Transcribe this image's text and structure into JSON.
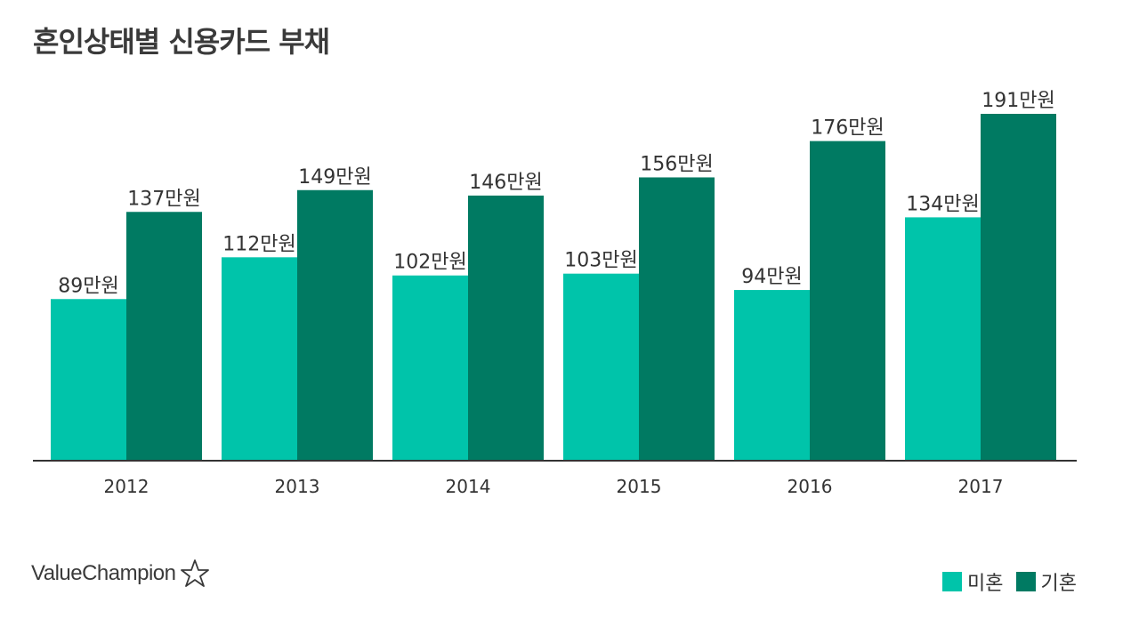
{
  "title": "혼인상태별 신용카드 부채",
  "logo": {
    "text": "ValueChampion",
    "icon": "star-outline-icon"
  },
  "colors": {
    "single": "#00c4aa",
    "married": "#007a62",
    "axis": "#333333"
  },
  "legend": [
    {
      "label": "미혼",
      "color": "#00c4aa"
    },
    {
      "label": "기혼",
      "color": "#007a62"
    }
  ],
  "chart_data": {
    "type": "bar",
    "categories": [
      "2012",
      "2013",
      "2014",
      "2015",
      "2016",
      "2017"
    ],
    "series": [
      {
        "name": "미혼",
        "values": [
          89,
          112,
          102,
          103,
          94,
          134
        ],
        "labels": [
          "89만원",
          "112만원",
          "102만원",
          "103만원",
          "94만원",
          "134만원"
        ]
      },
      {
        "name": "기혼",
        "values": [
          137,
          149,
          146,
          156,
          176,
          191
        ],
        "labels": [
          "137만원",
          "149만원",
          "146만원",
          "156만원",
          "176만원",
          "191만원"
        ]
      }
    ],
    "ylim": [
      0,
      191
    ],
    "grid": false,
    "legend_position": "bottom-right"
  }
}
